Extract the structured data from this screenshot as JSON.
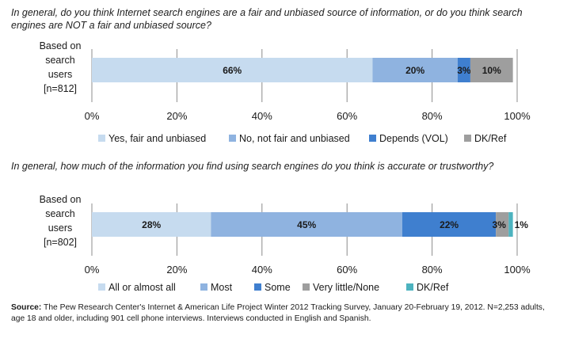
{
  "colors": {
    "yes": "#c6dbef",
    "no": "#8fb3e0",
    "depends": "#3f7fcf",
    "dk": "#9e9e9e",
    "all": "#c6dbef",
    "most": "#8fb3e0",
    "some": "#3f7fcf",
    "little": "#9e9e9e",
    "dkref2": "#4db3bf",
    "axis": "#8c8c8c"
  },
  "chart_data": [
    {
      "type": "bar",
      "orientation": "horizontal-stacked",
      "title": "In general, do you think Internet search engines are a fair and unbiased source of information, or do you think search engines are NOT a fair and unbiased source?",
      "categories": [
        "Based on search users [n=812]"
      ],
      "category_lines": [
        "Based on",
        "search",
        "users",
        "[n=812]"
      ],
      "series": [
        {
          "name": "Yes, fair and unbiased",
          "values": [
            66
          ],
          "label": "66%",
          "color_key": "yes"
        },
        {
          "name": "No, not fair and unbiased",
          "values": [
            20
          ],
          "label": "20%",
          "color_key": "no"
        },
        {
          "name": "Depends (VOL)",
          "values": [
            3
          ],
          "label": "3%",
          "color_key": "depends"
        },
        {
          "name": "DK/Ref",
          "values": [
            10
          ],
          "label": "10%",
          "color_key": "dk"
        }
      ],
      "xlim": [
        0,
        100
      ],
      "xticks": [
        "0%",
        "20%",
        "40%",
        "60%",
        "80%",
        "100%"
      ],
      "grid": true,
      "legend_position": "bottom"
    },
    {
      "type": "bar",
      "orientation": "horizontal-stacked",
      "title": "In general, how much of the information you find using search engines do you think is accurate or trustworthy?",
      "categories": [
        "Based on search users [n=802]"
      ],
      "category_lines": [
        "Based on",
        "search",
        "users",
        "[n=802]"
      ],
      "series": [
        {
          "name": "All or almost all",
          "values": [
            28
          ],
          "label": "28%",
          "color_key": "all"
        },
        {
          "name": "Most",
          "values": [
            45
          ],
          "label": "45%",
          "color_key": "most"
        },
        {
          "name": "Some",
          "values": [
            22
          ],
          "label": "22%",
          "color_key": "some"
        },
        {
          "name": "Very little/None",
          "values": [
            3
          ],
          "label": "3%",
          "color_key": "little"
        },
        {
          "name": "DK/Ref",
          "values": [
            1
          ],
          "label": "1%",
          "color_key": "dkref2"
        }
      ],
      "xlim": [
        0,
        100
      ],
      "xticks": [
        "0%",
        "20%",
        "40%",
        "60%",
        "80%",
        "100%"
      ],
      "grid": true,
      "legend_position": "bottom"
    }
  ],
  "source": {
    "label": "Source:",
    "text": "The Pew Research Center's Internet & American Life Project Winter 2012 Tracking Survey, January 20-February 19, 2012. N=2,253 adults, age 18 and older, including 901 cell phone interviews. Interviews conducted in English and Spanish."
  }
}
